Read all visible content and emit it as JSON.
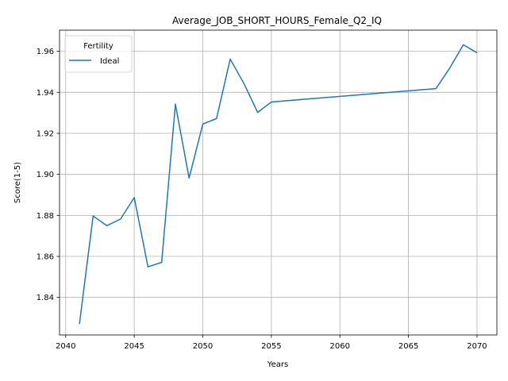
{
  "chart_data": {
    "type": "line",
    "title": "Average_JOB_SHORT_HOURS_Female_Q2_IQ",
    "xlabel": "Years",
    "ylabel": "Score(1-5)",
    "xlim": [
      2039.55,
      2071.45
    ],
    "ylim": [
      1.8217,
      1.9703
    ],
    "xticks": [
      2040,
      2045,
      2050,
      2055,
      2060,
      2065,
      2070
    ],
    "yticks": [
      1.84,
      1.86,
      1.88,
      1.9,
      1.92,
      1.94,
      1.96
    ],
    "xtick_labels": [
      "2040",
      "2045",
      "2050",
      "2055",
      "2060",
      "2065",
      "2070"
    ],
    "ytick_labels": [
      "1.84",
      "1.86",
      "1.88",
      "1.90",
      "1.92",
      "1.94",
      "1.96"
    ],
    "grid": true,
    "legend": {
      "title": "Fertility",
      "placement": "upper-left"
    },
    "series": [
      {
        "name": "Ideal",
        "color": "#1f77b4",
        "x": [
          2041,
          2042,
          2043,
          2044,
          2045,
          2046,
          2047,
          2048,
          2049,
          2050,
          2051,
          2052,
          2053,
          2054,
          2055,
          2067,
          2068,
          2069,
          2070
        ],
        "y": [
          1.827,
          1.8797,
          1.875,
          1.8782,
          1.8887,
          1.8549,
          1.8571,
          1.9342,
          1.8982,
          1.9245,
          1.9272,
          1.9562,
          1.9443,
          1.9302,
          1.9353,
          1.9418,
          1.9517,
          1.9632,
          1.9593
        ]
      }
    ]
  }
}
